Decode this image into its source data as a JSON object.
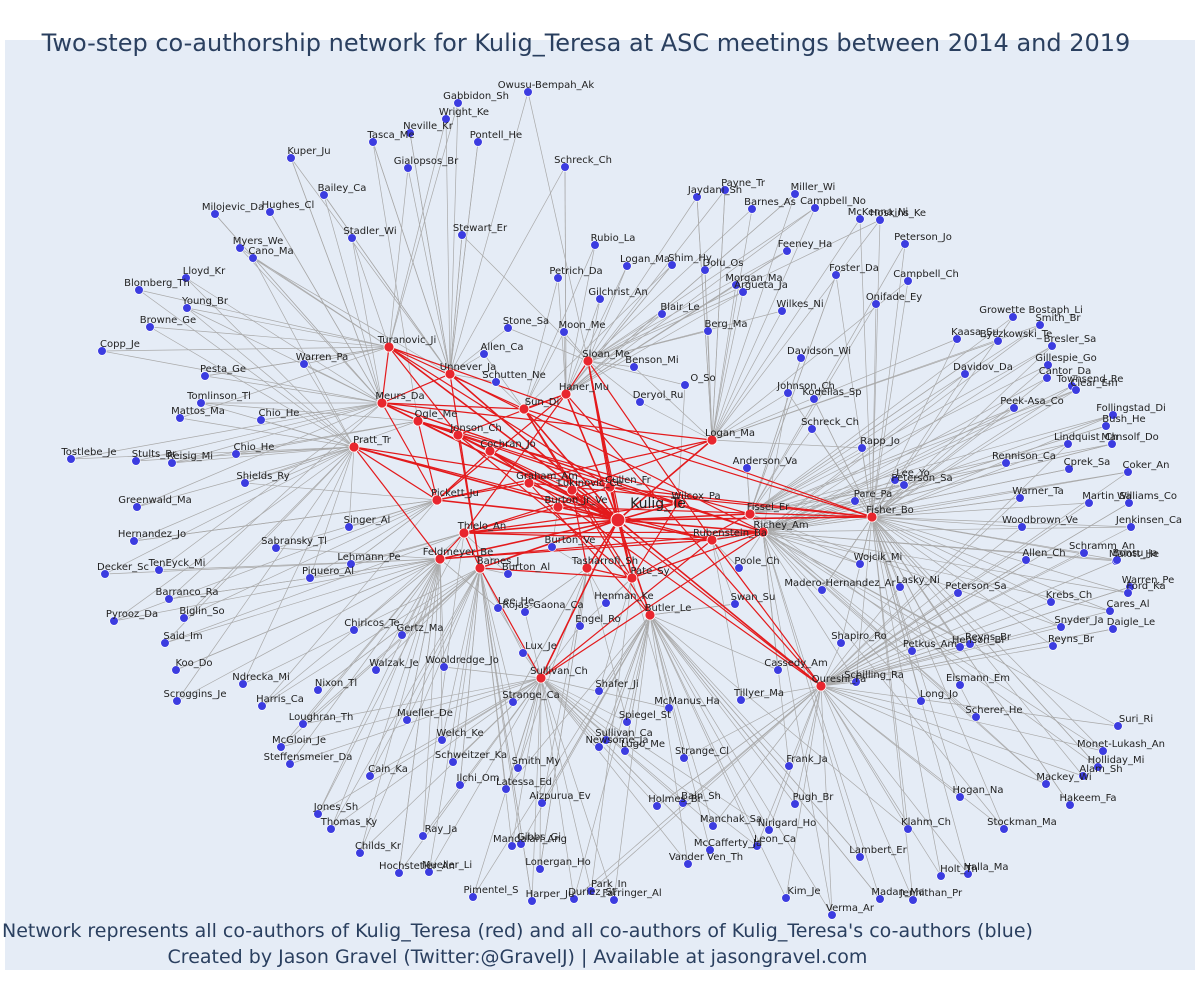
{
  "title": "Two-step co-authorship network for Kulig_Teresa at ASC meetings between 2014 and 2019",
  "footer": {
    "line1": "Network represents all co-authors of Kulig_Teresa (red) and all co-authors of Kulig_Teresa's co-authors (blue)",
    "line2": "Created by Jason Gravel (Twitter:@GravelJ) | Available at jasongravel.com"
  },
  "colors": {
    "red": "#e8262e",
    "blue": "#3c3ce0",
    "edge": "#a9a9a9",
    "redEdge": "#e31a1c"
  },
  "center": "Kulig_Te",
  "red": [
    "Turanovic_Ji",
    "Unnever_Ja",
    "Sloan_Me",
    "Haner_Mu",
    "Sun_Di",
    "Meurs_Da",
    "Ogle_Me",
    "Jonson_Ch",
    "Pratt_Tr",
    "Logan_Ma",
    "Cochran_Jo",
    "Graham_Am",
    "Cullen_Fr",
    "Pickett_Ju",
    "Thielo_An",
    "Burton_Jr_Ve",
    "Wilcox_Pa",
    "Fissel_Er",
    "Richey_Am",
    "Fisher_Bo",
    "Feldmeyer_Be",
    "Barnes_J",
    "Tasharrofi_Sh",
    "Pate_Sy",
    "Butler_Le",
    "Sullivan_Ch",
    "Qureshi_Fa",
    "Rubenstein_Ba",
    "Lukinovic_Ce"
  ],
  "blue": [
    "Owusu-Bempah_Ak",
    "Gabbidon_Sh",
    "Wright_Ke",
    "Neville_Kr",
    "Tasca_Me",
    "Kuper_Ju",
    "Pontell_He",
    "Schreck_Ch",
    "Gialopsos_Br",
    "Bailey_Ca",
    "Hughes_Cl",
    "Milojevic_Da",
    "Stadler_Wi",
    "Stewart_Er",
    "Myers_We",
    "Cano_Ma",
    "Lloyd_Kr",
    "Blomberg_Th",
    "Young_Br",
    "Browne_Ge",
    "Copp_Je",
    "Pesta_Ge",
    "Warren_Pa",
    "Tomlinson_Tl",
    "Mattos_Ma",
    "Chio_He",
    "Chio_He",
    "Tostlebe_Je",
    "Stults_Br",
    "Reisig_Mi",
    "Shields_Ry",
    "Greenwald_Ma",
    "Hernandez_Jo",
    "Sabransky_Tl",
    "Singer_Al",
    "Lehmann_Pe",
    "Decker_Sc",
    "TenEyck_Mi",
    "Piquero_Al",
    "Barranco_Ra",
    "Biglin_So",
    "Pyrooz_Da",
    "Said_Im",
    "Koo_Do",
    "Ndrecka_Mi",
    "Nixon_Tl",
    "Scroggins_Je",
    "Harris_Ca",
    "Loughran_Th",
    "McGloin_Je",
    "Steffensmeier_Da",
    "Cain_Ka",
    "Jones_Sh",
    "Thomas_Ky",
    "Childs_Kr",
    "Hochstetler_An",
    "Mueller_Li",
    "Chiricos_Te",
    "Gertz_Ma",
    "Walzak_Je",
    "Wooldredge_Jo",
    "Mueller_De",
    "Welch_Ke",
    "Schweitzer_Ka",
    "Smith_My",
    "Ilchi_Om",
    "Ray_Ja",
    "Latessa_Ed",
    "Mandalari_Ang",
    "Gibbs_Gi",
    "Lonergan_Ho",
    "Pimentel_S",
    "Harper_Ju",
    "Duriez_St",
    "Park_In",
    "Farringer_Al",
    "Aizpurua_Ev",
    "Newsome_Ja",
    "Holmes_Br",
    "Bain_Sh",
    "Manchak_Sa",
    "McCafferty_Ja",
    "Leon_Ca",
    "Vander Ven_Th",
    "Kim_Je",
    "Nirigard_Ho",
    "Pugh_Br",
    "Frank_Ja",
    "Strange_Cl",
    "Spiegel_St",
    "Sullivan_Ca",
    "Lugo_Me",
    "Shafer_Ji",
    "McManus_Ha",
    "Tillyer_Ma",
    "Strange_Ca",
    "Lux_Je",
    "Rojas-Gaona_Ca",
    "Engel_Ro",
    "Lee_He",
    "Burton_Al",
    "Burton_Ve",
    "Henman_Ke",
    "Rubio_La",
    "Petrich_Da",
    "Logan_Ma",
    "Shim_Hy",
    "Dolu_Os",
    "Morgan_Ma",
    "Gilchrist_An",
    "Blair_Le",
    "Argueta_Ja",
    "Stone_Sa",
    "Moon_Me",
    "Allen_Ca",
    "Schutten_Ne",
    "Benson_Mi",
    "Deryol_Ru",
    "O_So",
    "Berg_Ma",
    "Wilkes_Ni",
    "Payne_Tr",
    "Jaydani_Sh",
    "Miller_Wi",
    "Barnes_As",
    "Campbell_No",
    "McKenna_Ni",
    "Hoskins_Ke",
    "Peterson_Jo",
    "Feeney_Ha",
    "Foster_Da",
    "Campbell_Ch",
    "Onifade_Ey",
    "Davidson_Wi",
    "Johnson_Ch",
    "Kodellas_Sp",
    "Schreck_Ch",
    "Rapp_Jo",
    "Anderson_Va",
    "Lee_Yo",
    "Peterson_Sa",
    "Pare_Pa",
    "Poole_Ch",
    "Wojcik_Mi",
    "Madero-Hernandez_Ar",
    "Lasky_Ni",
    "Peterson_Sa",
    "Swan_Su",
    "Shapiro_Ro",
    "Petkus_Am",
    "Schilling_Ra",
    "Henson_Bl",
    "Reyns_Br",
    "Cassedy_Am",
    "Eismann_Em",
    "Long_Jo",
    "Scherer_He",
    "Growette Bostaph_Li",
    "Smith_Br",
    "Kaasa_Su",
    "Byczkowski_Te",
    "Bresler_Sa",
    "Davidov_Da",
    "Gillespie_Go",
    "Cantor_Da",
    "Townsend_Re",
    "Clear_Em",
    "Peek-Asa_Co",
    "Follingstad_Di",
    "Bush_He",
    "Lindquist_Ch",
    "Mansolf_Do",
    "Rennison_Ca",
    "Cprek_Sa",
    "Coker_An",
    "Warner_Ta",
    "Martin_Sa",
    "Williams_Co",
    "Woodbrown_Ve",
    "Jenkinsen_Ca",
    "Malott_He",
    "Allen_Ch",
    "Bonsu_Ja",
    "Schramm_An",
    "Krebs_Ch",
    "Warren_Pe",
    "Ford_Ka",
    "Daigle_Le",
    "Snyder_Ja",
    "Reyns_Br",
    "Cares_Al",
    "Suri_Ri",
    "Monet-Lukash_An",
    "Holliday_Mi",
    "Alam_Sh",
    "Mackey_Wi",
    "Hakeem_Fa",
    "Stockman_Ma",
    "Hogan_Na",
    "Klahm_Ch",
    "Lambert_Er",
    "Holt_Th",
    "Nalla_Ma",
    "Madan_Ma",
    "Jennithan_Pr",
    "Verma_Ar"
  ]
}
